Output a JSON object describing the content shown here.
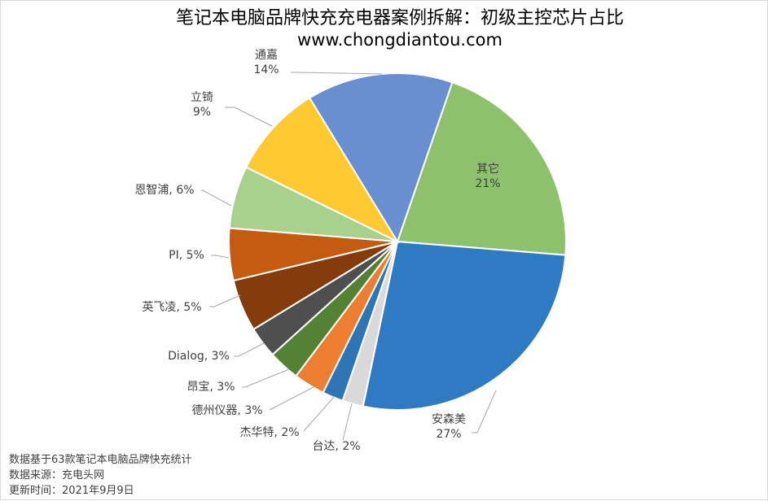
{
  "chart_data": {
    "type": "pie",
    "title": "笔记本电脑品牌快充充电器案例拆解：初级主控芯片占比",
    "subtitle": "www.chongdiantou.com",
    "slices": [
      {
        "name": "其它",
        "value": 21,
        "label": "21%",
        "color": "#8DC16B"
      },
      {
        "name": "安森美",
        "value": 27,
        "label": "27%",
        "color": "#2E7BC4"
      },
      {
        "name": "台达",
        "value": 2,
        "label": "台达, 2%",
        "color": "#D9D9D9"
      },
      {
        "name": "杰华特",
        "value": 2,
        "label": "杰华特, 2%",
        "color": "#2E75B6"
      },
      {
        "name": "德州仪器",
        "value": 3,
        "label": "德州仪器, 3%",
        "color": "#ED7D31"
      },
      {
        "name": "昂宝",
        "value": 3,
        "label": "昂宝, 3%",
        "color": "#548235"
      },
      {
        "name": "Dialog",
        "value": 3,
        "label": "Dialog, 3%",
        "color": "#4F4F4F"
      },
      {
        "name": "英飞凌",
        "value": 5,
        "label": "英飞凌, 5%",
        "color": "#843C0C"
      },
      {
        "name": "PI",
        "value": 5,
        "label": "PI, 5%",
        "color": "#C55A11"
      },
      {
        "name": "恩智浦",
        "value": 6,
        "label": "恩智浦, 6%",
        "color": "#A9D18E"
      },
      {
        "name": "立锜",
        "value": 9,
        "label": "9%",
        "color": "#FFC931"
      },
      {
        "name": "通嘉",
        "value": 14,
        "label": "14%",
        "color": "#6A8FD0"
      }
    ]
  },
  "footnotes": {
    "line1": "数据基于63款笔记本电脑品牌快充统计",
    "line2": "数据来源：充电头网",
    "line3": "更新时间：2021年9月9日"
  }
}
